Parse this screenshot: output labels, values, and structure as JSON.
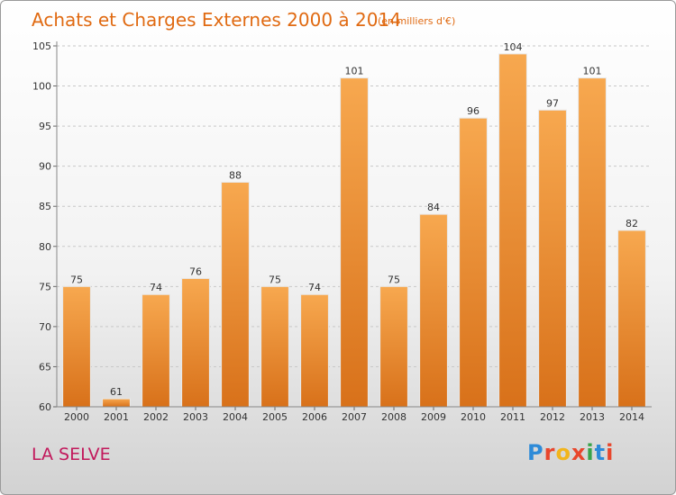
{
  "chart_data": {
    "type": "bar",
    "title": "Achats et Charges Externes 2000 à 2014",
    "subtitle": "(en milliers d'€)",
    "categories": [
      "2000",
      "2001",
      "2002",
      "2003",
      "2004",
      "2005",
      "2006",
      "2007",
      "2008",
      "2009",
      "2010",
      "2011",
      "2012",
      "2013",
      "2014"
    ],
    "values": [
      75,
      61,
      74,
      76,
      88,
      75,
      74,
      101,
      75,
      84,
      96,
      104,
      97,
      101,
      82
    ],
    "ylim": [
      60,
      105
    ],
    "yticks": [
      60,
      65,
      70,
      75,
      80,
      85,
      90,
      95,
      100,
      105
    ],
    "grid": true,
    "bar_color": "#f0902e"
  },
  "footer": {
    "city": "LA SELVE",
    "logo": "Proxiti",
    "logo_colors": [
      "#2e8bd8",
      "#e8462c",
      "#f2b51c",
      "#e8462c",
      "#38a34a",
      "#2e8bd8",
      "#e8462c"
    ]
  }
}
